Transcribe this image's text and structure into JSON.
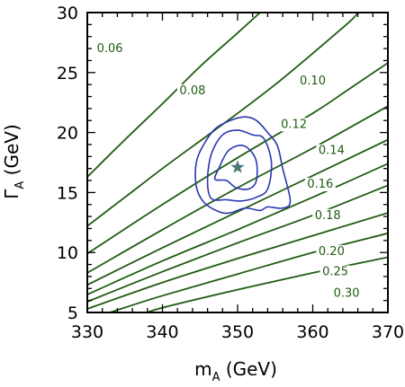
{
  "chart_data": {
    "type": "line",
    "title": "",
    "xlabel": {
      "main": "m",
      "sub": "A",
      "unit": " (GeV)"
    },
    "ylabel": {
      "main": "Γ",
      "sub": "A",
      "unit": " (GeV)"
    },
    "xlim": [
      330,
      370
    ],
    "ylim": [
      5,
      30
    ],
    "x_ticks": [
      330,
      340,
      350,
      360,
      370
    ],
    "y_ticks": [
      5,
      10,
      15,
      20,
      25,
      30
    ],
    "grid": false,
    "colors": {
      "contours": "#1f5c12",
      "likelihood": "#2b37b0",
      "best_fit": "#4a7a78",
      "axes": "#000000"
    },
    "series": [
      {
        "name": "0.06",
        "points": [
          [
            330,
            16.3
          ],
          [
            335,
            19.4
          ],
          [
            340,
            22.4
          ],
          [
            345,
            25.5
          ],
          [
            350,
            28.3
          ],
          [
            353,
            30.0
          ]
        ]
      },
      {
        "name": "0.08",
        "points": [
          [
            330,
            12.2
          ],
          [
            335,
            14.6
          ],
          [
            340,
            17.0
          ],
          [
            345,
            19.3
          ],
          [
            350,
            21.6
          ],
          [
            355,
            24.0
          ],
          [
            360,
            26.6
          ],
          [
            365,
            29.3
          ],
          [
            366,
            30.0
          ]
        ]
      },
      {
        "name": "0.10",
        "points": [
          [
            330,
            9.9
          ],
          [
            340,
            14.0
          ],
          [
            350,
            17.9
          ],
          [
            360,
            21.6
          ],
          [
            365,
            23.7
          ],
          [
            370,
            25.8
          ]
        ]
      },
      {
        "name": "0.12",
        "points": [
          [
            330,
            8.3
          ],
          [
            340,
            11.9
          ],
          [
            350,
            15.4
          ],
          [
            360,
            18.7
          ],
          [
            370,
            22.2
          ]
        ]
      },
      {
        "name": "0.14",
        "points": [
          [
            330,
            7.3
          ],
          [
            340,
            10.4
          ],
          [
            350,
            13.4
          ],
          [
            360,
            16.4
          ],
          [
            370,
            19.4
          ]
        ]
      },
      {
        "name": "0.16",
        "points": [
          [
            330,
            6.5
          ],
          [
            340,
            9.3
          ],
          [
            350,
            11.9
          ],
          [
            360,
            14.6
          ],
          [
            370,
            17.4
          ]
        ]
      },
      {
        "name": "0.18",
        "points": [
          [
            330,
            5.9
          ],
          [
            340,
            8.4
          ],
          [
            350,
            10.8
          ],
          [
            360,
            13.1
          ],
          [
            370,
            15.6
          ]
        ]
      },
      {
        "name": "0.20",
        "points": [
          [
            330,
            5.3
          ],
          [
            340,
            7.5
          ],
          [
            350,
            9.5
          ],
          [
            360,
            11.4
          ],
          [
            370,
            13.3
          ]
        ]
      },
      {
        "name": "0.25",
        "points": [
          [
            333,
            5.0
          ],
          [
            340,
            6.4
          ],
          [
            350,
            8.2
          ],
          [
            360,
            10.0
          ],
          [
            370,
            11.6
          ]
        ]
      },
      {
        "name": "0.30",
        "points": [
          [
            338,
            5.0
          ],
          [
            340,
            5.4
          ],
          [
            350,
            6.9
          ],
          [
            360,
            8.3
          ],
          [
            370,
            9.6
          ]
        ]
      }
    ],
    "likelihood_contours": [
      {
        "points": [
          [
            345.5,
            14.2
          ],
          [
            344.5,
            15.5
          ],
          [
            344.5,
            17.5
          ],
          [
            345.5,
            19.0
          ],
          [
            347.0,
            20.3
          ],
          [
            349.0,
            21.0
          ],
          [
            351.0,
            21.3
          ],
          [
            352.5,
            21.0
          ],
          [
            354.0,
            20.0
          ],
          [
            355.3,
            18.9
          ],
          [
            356.0,
            17.0
          ],
          [
            357.0,
            14.3
          ],
          [
            356.0,
            13.7
          ],
          [
            354.0,
            13.8
          ],
          [
            353.0,
            13.5
          ],
          [
            351.0,
            13.7
          ],
          [
            349.0,
            13.3
          ],
          [
            347.5,
            13.4
          ]
        ]
      },
      {
        "points": [
          [
            346.5,
            14.5
          ],
          [
            346.0,
            16.0
          ],
          [
            346.5,
            18.2
          ],
          [
            348.0,
            19.8
          ],
          [
            350.0,
            20.2
          ],
          [
            352.0,
            19.8
          ],
          [
            353.5,
            19.5
          ],
          [
            354.5,
            17.5
          ],
          [
            354.0,
            15.3
          ],
          [
            352.5,
            14.6
          ],
          [
            350.5,
            14.3
          ],
          [
            348.5,
            14.4
          ]
        ]
      },
      {
        "points": [
          [
            347.0,
            16.1
          ],
          [
            347.5,
            17.0
          ],
          [
            348.8,
            18.5
          ],
          [
            350.8,
            18.9
          ],
          [
            352.4,
            17.8
          ],
          [
            352.5,
            16.0
          ],
          [
            351.5,
            15.3
          ],
          [
            349.8,
            15.4
          ],
          [
            348.5,
            16.0
          ]
        ]
      }
    ],
    "best_fit": {
      "x": 350,
      "y": 17.1
    },
    "contour_labels": [
      {
        "text": "0.06",
        "x": 333.0,
        "y": 26.7
      },
      {
        "text": "0.08",
        "x": 344.0,
        "y": 23.2
      },
      {
        "text": "0.10",
        "x": 360.0,
        "y": 24.0
      },
      {
        "text": "0.12",
        "x": 357.5,
        "y": 20.4
      },
      {
        "text": "0.14",
        "x": 362.5,
        "y": 18.2
      },
      {
        "text": "0.16",
        "x": 361.0,
        "y": 15.4
      },
      {
        "text": "0.18",
        "x": 362.0,
        "y": 12.8
      },
      {
        "text": "0.20",
        "x": 362.5,
        "y": 9.8
      },
      {
        "text": "0.25",
        "x": 363.0,
        "y": 8.1
      },
      {
        "text": "0.30",
        "x": 364.5,
        "y": 6.3
      }
    ]
  }
}
